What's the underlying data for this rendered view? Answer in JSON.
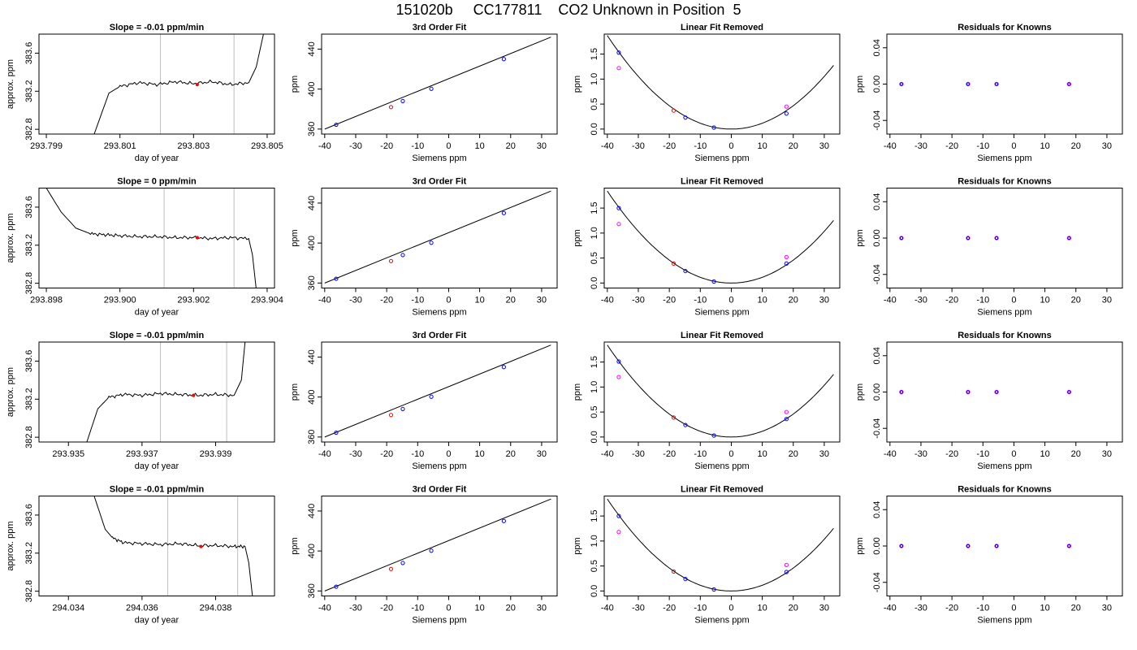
{
  "title": "151020b     CC177811    CO2 Unknown in Position  5",
  "colors": {
    "line": "#000000",
    "known": "#0000ff",
    "unknown": "#ff0000",
    "outlier": "#ff00ff",
    "vline": "#bebebe"
  },
  "chart_data": [
    {
      "type": "line",
      "row": 1,
      "title": "Slope =  -0.01  ppm/min",
      "xlabel": "day of year",
      "ylabel": "approx. ppm",
      "xlim": [
        293.7988,
        293.8052
      ],
      "ylim": [
        382.75,
        383.8
      ],
      "xticks": [
        "293.799",
        "293.801",
        "293.803",
        "293.805"
      ],
      "xtick_values": [
        293.799,
        293.801,
        293.803,
        293.805
      ],
      "yticks": [
        "382.8",
        "383.2",
        "383.6"
      ],
      "ytick_values": [
        382.8,
        383.2,
        383.6
      ],
      "vlines": [
        293.8021,
        293.8041
      ],
      "marker": {
        "x": 293.8031,
        "y": 383.27
      },
      "series": [
        {
          "x": [
            293.8003,
            293.8007,
            293.801,
            293.8015,
            293.802,
            293.8025,
            293.803,
            293.8035,
            293.804,
            293.8045,
            293.8047,
            293.8049
          ],
          "y": [
            382.75,
            383.18,
            383.25,
            383.29,
            383.27,
            383.3,
            383.28,
            383.3,
            383.27,
            383.29,
            383.45,
            383.8
          ]
        }
      ]
    },
    {
      "type": "scatter",
      "row": 1,
      "title": "3rd Order Fit",
      "xlabel": "Siemens ppm",
      "ylabel": "ppm",
      "xlim": [
        -41,
        35
      ],
      "ylim": [
        355,
        455
      ],
      "xticks": [
        -40,
        -30,
        -20,
        -10,
        0,
        10,
        20,
        30
      ],
      "yticks": [
        360,
        400,
        440
      ],
      "fit": [
        [
          -40,
          360
        ],
        [
          33,
          452
        ]
      ],
      "points": [
        {
          "x": -36.3,
          "y": 364.3,
          "c": "known"
        },
        {
          "x": -18.6,
          "y": 382,
          "c": "unknown"
        },
        {
          "x": -14.8,
          "y": 388,
          "c": "known"
        },
        {
          "x": -5.6,
          "y": 400.3,
          "c": "known"
        },
        {
          "x": 17.8,
          "y": 430,
          "c": "known"
        }
      ]
    },
    {
      "type": "scatter",
      "row": 1,
      "title": "Linear Fit Removed",
      "xlabel": "Siemens ppm",
      "ylabel": "ppm",
      "xlim": [
        -41,
        35
      ],
      "ylim": [
        -0.1,
        1.9
      ],
      "xticks": [
        -40,
        -30,
        -20,
        -10,
        0,
        10,
        20,
        30
      ],
      "yticks": [
        0.0,
        0.5,
        1.0,
        1.5
      ],
      "curve_k": 0.00117,
      "points": [
        {
          "x": -36.3,
          "y": 1.53,
          "c": "known"
        },
        {
          "x": -36.3,
          "y": 1.22,
          "c": "outlier"
        },
        {
          "x": -18.6,
          "y": 0.37,
          "c": "unknown"
        },
        {
          "x": -14.8,
          "y": 0.23,
          "c": "known"
        },
        {
          "x": -5.6,
          "y": 0.03,
          "c": "known"
        },
        {
          "x": 17.8,
          "y": 0.31,
          "c": "known"
        },
        {
          "x": 17.8,
          "y": 0.45,
          "c": "outlier"
        }
      ]
    },
    {
      "type": "scatter",
      "row": 1,
      "title": "Residuals for Knowns",
      "xlabel": "Siemens ppm",
      "ylabel": "ppm",
      "xlim": [
        -41,
        35
      ],
      "ylim": [
        -0.055,
        0.055
      ],
      "xticks": [
        -40,
        -30,
        -20,
        -10,
        0,
        10,
        20,
        30
      ],
      "yticks": [
        -0.04,
        0.0,
        0.04
      ],
      "points": [
        {
          "x": -36.3,
          "y": 0
        },
        {
          "x": -14.8,
          "y": 0
        },
        {
          "x": -5.6,
          "y": 0
        },
        {
          "x": 17.8,
          "y": 0
        }
      ]
    },
    {
      "type": "line",
      "row": 2,
      "title": "Slope =  0  ppm/min",
      "xlabel": "day of year",
      "ylabel": "approx. ppm",
      "xlim": [
        293.8978,
        293.9042
      ],
      "ylim": [
        382.75,
        383.8
      ],
      "xticks": [
        "293.898",
        "293.900",
        "293.902",
        "293.904"
      ],
      "xtick_values": [
        293.898,
        293.9,
        293.902,
        293.904
      ],
      "yticks": [
        "382.8",
        "383.2",
        "383.6"
      ],
      "ytick_values": [
        382.8,
        383.2,
        383.6
      ],
      "vlines": [
        293.9012,
        293.9031
      ],
      "marker": {
        "x": 293.9021,
        "y": 383.28
      },
      "series": [
        {
          "x": [
            293.898,
            293.8984,
            293.8988,
            293.8992,
            293.8996,
            293.9,
            293.9005,
            293.901,
            293.9015,
            293.902,
            293.9025,
            293.903,
            293.9035,
            293.9036,
            293.9037
          ],
          "y": [
            383.8,
            383.55,
            383.38,
            383.32,
            383.31,
            383.3,
            383.29,
            383.29,
            383.28,
            383.28,
            383.27,
            383.28,
            383.27,
            383.1,
            382.75
          ]
        }
      ]
    },
    {
      "type": "scatter",
      "row": 2,
      "title": "3rd Order Fit",
      "xlabel": "Siemens ppm",
      "ylabel": "ppm",
      "xlim": [
        -41,
        35
      ],
      "ylim": [
        355,
        455
      ],
      "xticks": [
        -40,
        -30,
        -20,
        -10,
        0,
        10,
        20,
        30
      ],
      "yticks": [
        360,
        400,
        440
      ],
      "fit": [
        [
          -40,
          360
        ],
        [
          33,
          452
        ]
      ],
      "points": [
        {
          "x": -36.3,
          "y": 364.3,
          "c": "known"
        },
        {
          "x": -18.6,
          "y": 382,
          "c": "unknown"
        },
        {
          "x": -14.8,
          "y": 388,
          "c": "known"
        },
        {
          "x": -5.6,
          "y": 400.3,
          "c": "known"
        },
        {
          "x": 17.8,
          "y": 430,
          "c": "known"
        }
      ]
    },
    {
      "type": "scatter",
      "row": 2,
      "title": "Linear Fit Removed",
      "xlabel": "Siemens ppm",
      "ylabel": "ppm",
      "xlim": [
        -41,
        35
      ],
      "ylim": [
        -0.1,
        1.9
      ],
      "xticks": [
        -40,
        -30,
        -20,
        -10,
        0,
        10,
        20,
        30
      ],
      "yticks": [
        0.0,
        0.5,
        1.0,
        1.5
      ],
      "curve_k": 0.00115,
      "points": [
        {
          "x": -36.3,
          "y": 1.5,
          "c": "known"
        },
        {
          "x": -36.3,
          "y": 1.18,
          "c": "outlier"
        },
        {
          "x": -18.6,
          "y": 0.39,
          "c": "unknown"
        },
        {
          "x": -14.8,
          "y": 0.24,
          "c": "known"
        },
        {
          "x": -5.6,
          "y": 0.03,
          "c": "known"
        },
        {
          "x": 17.8,
          "y": 0.39,
          "c": "known"
        },
        {
          "x": 17.8,
          "y": 0.52,
          "c": "outlier"
        }
      ]
    },
    {
      "type": "scatter",
      "row": 2,
      "title": "Residuals for Knowns",
      "xlabel": "Siemens ppm",
      "ylabel": "ppm",
      "xlim": [
        -41,
        35
      ],
      "ylim": [
        -0.055,
        0.055
      ],
      "xticks": [
        -40,
        -30,
        -20,
        -10,
        0,
        10,
        20,
        30
      ],
      "yticks": [
        -0.04,
        0.0,
        0.04
      ],
      "points": [
        {
          "x": -36.3,
          "y": 0
        },
        {
          "x": -14.8,
          "y": 0
        },
        {
          "x": -5.6,
          "y": 0
        },
        {
          "x": 17.8,
          "y": 0
        }
      ]
    },
    {
      "type": "line",
      "row": 3,
      "title": "Slope =  -0.01  ppm/min",
      "xlabel": "day of year",
      "ylabel": "approx. ppm",
      "xlim": [
        293.9342,
        293.9406
      ],
      "ylim": [
        382.75,
        383.8
      ],
      "xticks": [
        "293.935",
        "293.937",
        "293.939"
      ],
      "xtick_values": [
        293.935,
        293.937,
        293.939
      ],
      "yticks": [
        "382.8",
        "383.2",
        "383.6"
      ],
      "ytick_values": [
        382.8,
        383.2,
        383.6
      ],
      "vlines": [
        293.9375,
        293.9393
      ],
      "marker": {
        "x": 293.9384,
        "y": 383.24
      },
      "series": [
        {
          "x": [
            293.9355,
            293.9358,
            293.9361,
            293.9365,
            293.937,
            293.9375,
            293.938,
            293.9385,
            293.939,
            293.9395,
            293.9397,
            293.9398
          ],
          "y": [
            382.75,
            383.1,
            383.22,
            383.25,
            383.24,
            383.26,
            383.25,
            383.24,
            383.25,
            383.24,
            383.4,
            383.8
          ]
        }
      ]
    },
    {
      "type": "scatter",
      "row": 3,
      "title": "3rd Order Fit",
      "xlabel": "Siemens ppm",
      "ylabel": "ppm",
      "xlim": [
        -41,
        35
      ],
      "ylim": [
        355,
        455
      ],
      "xticks": [
        -40,
        -30,
        -20,
        -10,
        0,
        10,
        20,
        30
      ],
      "yticks": [
        360,
        400,
        440
      ],
      "fit": [
        [
          -40,
          360
        ],
        [
          33,
          452
        ]
      ],
      "points": [
        {
          "x": -36.3,
          "y": 364.3,
          "c": "known"
        },
        {
          "x": -18.6,
          "y": 382,
          "c": "unknown"
        },
        {
          "x": -14.8,
          "y": 388,
          "c": "known"
        },
        {
          "x": -5.6,
          "y": 400.3,
          "c": "known"
        },
        {
          "x": 17.8,
          "y": 430,
          "c": "known"
        }
      ]
    },
    {
      "type": "scatter",
      "row": 3,
      "title": "Linear Fit Removed",
      "xlabel": "Siemens ppm",
      "ylabel": "ppm",
      "xlim": [
        -41,
        35
      ],
      "ylim": [
        -0.1,
        1.9
      ],
      "xticks": [
        -40,
        -30,
        -20,
        -10,
        0,
        10,
        20,
        30
      ],
      "yticks": [
        0.0,
        0.5,
        1.0,
        1.5
      ],
      "curve_k": 0.00115,
      "points": [
        {
          "x": -36.3,
          "y": 1.51,
          "c": "known"
        },
        {
          "x": -36.3,
          "y": 1.2,
          "c": "outlier"
        },
        {
          "x": -18.6,
          "y": 0.39,
          "c": "unknown"
        },
        {
          "x": -14.8,
          "y": 0.24,
          "c": "known"
        },
        {
          "x": -5.6,
          "y": 0.03,
          "c": "known"
        },
        {
          "x": 17.8,
          "y": 0.36,
          "c": "known"
        },
        {
          "x": 17.8,
          "y": 0.5,
          "c": "outlier"
        }
      ]
    },
    {
      "type": "scatter",
      "row": 3,
      "title": "Residuals for Knowns",
      "xlabel": "Siemens ppm",
      "ylabel": "ppm",
      "xlim": [
        -41,
        35
      ],
      "ylim": [
        -0.055,
        0.055
      ],
      "xticks": [
        -40,
        -30,
        -20,
        -10,
        0,
        10,
        20,
        30
      ],
      "yticks": [
        -0.04,
        0.0,
        0.04
      ],
      "points": [
        {
          "x": -36.3,
          "y": 0
        },
        {
          "x": -14.8,
          "y": 0
        },
        {
          "x": -5.6,
          "y": 0
        },
        {
          "x": 17.8,
          "y": 0
        }
      ]
    },
    {
      "type": "line",
      "row": 4,
      "title": "Slope =  -0.01  ppm/min",
      "xlabel": "day of year",
      "ylabel": "approx. ppm",
      "xlim": [
        294.0332,
        294.0396
      ],
      "ylim": [
        382.75,
        383.8
      ],
      "xticks": [
        "294.034",
        "294.036",
        "294.038"
      ],
      "xtick_values": [
        294.034,
        294.036,
        294.038
      ],
      "yticks": [
        "382.8",
        "383.2",
        "383.6"
      ],
      "ytick_values": [
        382.8,
        383.2,
        383.6
      ],
      "vlines": [
        294.0367,
        294.0386
      ],
      "marker": {
        "x": 294.0376,
        "y": 383.27
      },
      "series": [
        {
          "x": [
            294.0347,
            294.035,
            294.0352,
            294.0355,
            294.036,
            294.0365,
            294.037,
            294.0375,
            294.038,
            294.0385,
            294.0388,
            294.0389,
            294.039
          ],
          "y": [
            383.8,
            383.45,
            383.36,
            383.31,
            383.3,
            383.29,
            383.3,
            383.28,
            383.28,
            383.27,
            383.27,
            383.1,
            382.75
          ]
        }
      ]
    },
    {
      "type": "scatter",
      "row": 4,
      "title": "3rd Order Fit",
      "xlabel": "Siemens ppm",
      "ylabel": "ppm",
      "xlim": [
        -41,
        35
      ],
      "ylim": [
        355,
        455
      ],
      "xticks": [
        -40,
        -30,
        -20,
        -10,
        0,
        10,
        20,
        30
      ],
      "yticks": [
        360,
        400,
        440
      ],
      "fit": [
        [
          -40,
          360
        ],
        [
          33,
          452
        ]
      ],
      "points": [
        {
          "x": -36.3,
          "y": 364.3,
          "c": "known"
        },
        {
          "x": -18.6,
          "y": 382,
          "c": "unknown"
        },
        {
          "x": -14.8,
          "y": 388,
          "c": "known"
        },
        {
          "x": -5.6,
          "y": 400.3,
          "c": "known"
        },
        {
          "x": 17.8,
          "y": 430,
          "c": "known"
        }
      ]
    },
    {
      "type": "scatter",
      "row": 4,
      "title": "Linear Fit Removed",
      "xlabel": "Siemens ppm",
      "ylabel": "ppm",
      "xlim": [
        -41,
        35
      ],
      "ylim": [
        -0.1,
        1.9
      ],
      "xticks": [
        -40,
        -30,
        -20,
        -10,
        0,
        10,
        20,
        30
      ],
      "yticks": [
        0.0,
        0.5,
        1.0,
        1.5
      ],
      "curve_k": 0.00115,
      "points": [
        {
          "x": -36.3,
          "y": 1.5,
          "c": "known"
        },
        {
          "x": -36.3,
          "y": 1.18,
          "c": "outlier"
        },
        {
          "x": -18.6,
          "y": 0.39,
          "c": "unknown"
        },
        {
          "x": -14.8,
          "y": 0.24,
          "c": "known"
        },
        {
          "x": -5.6,
          "y": 0.03,
          "c": "known"
        },
        {
          "x": 17.8,
          "y": 0.38,
          "c": "known"
        },
        {
          "x": 17.8,
          "y": 0.52,
          "c": "outlier"
        }
      ]
    },
    {
      "type": "scatter",
      "row": 4,
      "title": "Residuals for Knowns",
      "xlabel": "Siemens ppm",
      "ylabel": "ppm",
      "xlim": [
        -41,
        35
      ],
      "ylim": [
        -0.055,
        0.055
      ],
      "xticks": [
        -40,
        -30,
        -20,
        -10,
        0,
        10,
        20,
        30
      ],
      "yticks": [
        -0.04,
        0.0,
        0.04
      ],
      "points": [
        {
          "x": -36.3,
          "y": 0
        },
        {
          "x": -14.8,
          "y": 0
        },
        {
          "x": -5.6,
          "y": 0
        },
        {
          "x": 17.8,
          "y": 0
        }
      ]
    }
  ]
}
